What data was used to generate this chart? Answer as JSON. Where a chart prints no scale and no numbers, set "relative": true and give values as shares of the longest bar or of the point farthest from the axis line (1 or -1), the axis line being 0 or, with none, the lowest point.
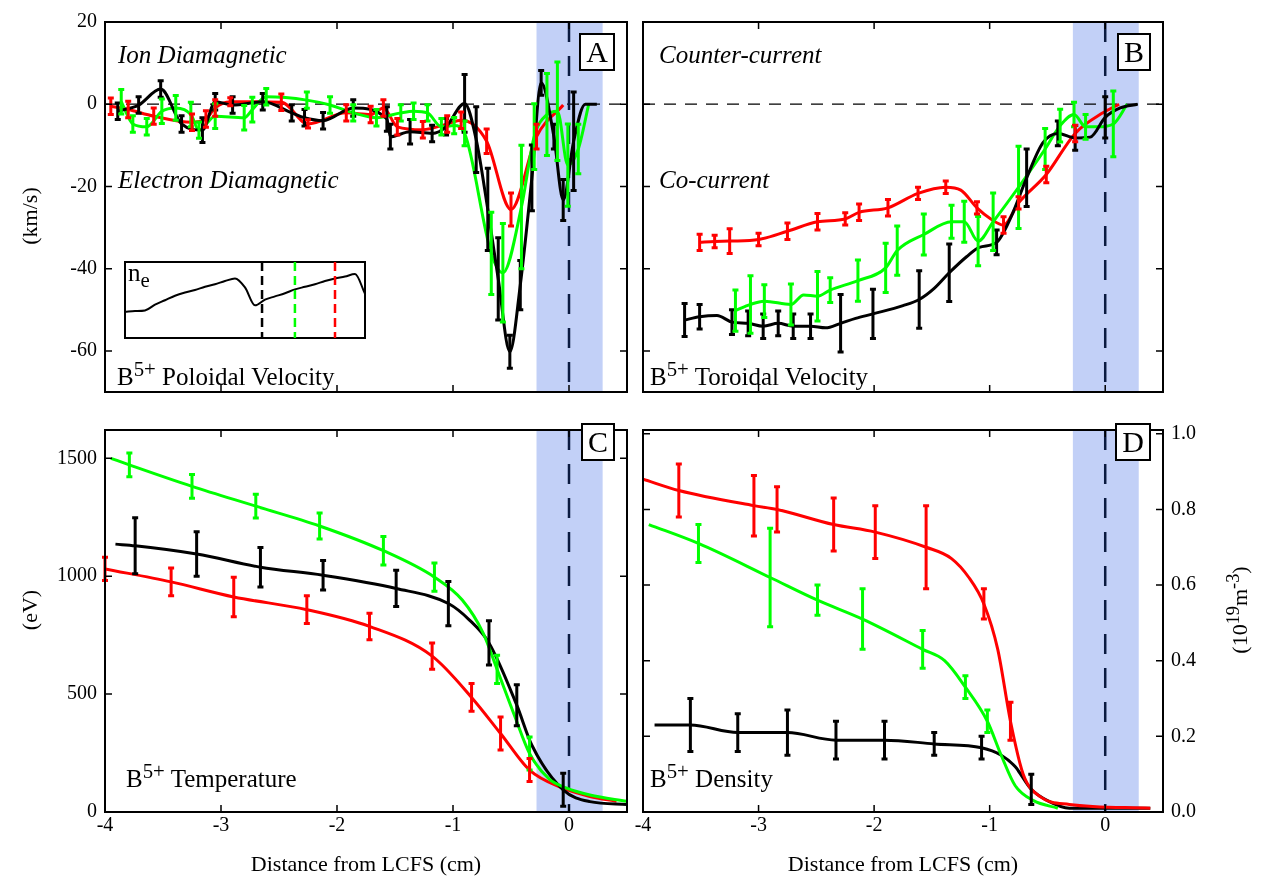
{
  "chart_data": [
    {
      "type": "line",
      "title": "A",
      "ylabel": "(km/s)",
      "annotations": [
        "Ion Diamagnetic",
        "Electron Diamagnetic",
        "B$^{5+}$ Poloidal Velocity"
      ],
      "xlim": [
        -4,
        0.5
      ],
      "xticks": [
        {
          "value": -4,
          "label": null
        },
        {
          "value": -3,
          "label": null
        },
        {
          "value": -2,
          "label": null
        },
        {
          "value": -1,
          "label": null
        },
        {
          "value": 0,
          "label": null
        }
      ],
      "ylim": [
        -70,
        20
      ],
      "yticks": [
        -60,
        -40,
        -20,
        0,
        20
      ],
      "tick_labels": "y",
      "grid": false,
      "legend": false,
      "marker": "none",
      "bands": [
        {
          "axis": "x",
          "from": -0.28,
          "to": 0.29,
          "color": "#c2d0f7"
        }
      ],
      "ref_lines": [
        {
          "axis": "y",
          "value": 0,
          "color": "#000000",
          "line_style": "dashed"
        },
        {
          "axis": "x",
          "value": 0,
          "color": "#0a1a40",
          "line_style": "dashed"
        }
      ],
      "series": [
        {
          "color": "#000000",
          "x": [
            -3.89,
            -3.71,
            -3.52,
            -3.34,
            -3.16,
            -3.05,
            -2.9,
            -2.64,
            -2.39,
            -2.28,
            -2.12,
            -1.86,
            -1.57,
            -1.54,
            -1.37,
            -1.18,
            -1.06,
            -0.9,
            -0.8,
            -0.7,
            -0.61,
            -0.51,
            -0.42,
            -0.32,
            -0.24,
            -0.13,
            -0.05,
            0.04,
            0.14,
            0.24
          ],
          "values": [
            -1.7,
            -0.2,
            3.7,
            -4.8,
            -6.3,
            0.6,
            -0.2,
            0.6,
            -2.1,
            -3.3,
            -4,
            -0.9,
            -3.6,
            -7.9,
            -6.7,
            -7.1,
            -5.5,
            0.2,
            -8.6,
            -25.6,
            -42.5,
            -60.2,
            -44,
            -17.9,
            5.2,
            -7.9,
            -23.3,
            -9,
            0,
            0
          ],
          "errors": [
            2,
            2,
            2,
            2,
            3,
            2,
            2,
            2,
            2,
            2,
            2,
            2,
            3,
            3,
            3,
            2,
            2,
            7,
            8,
            10,
            10,
            4,
            6,
            8,
            3,
            3,
            5,
            12,
            null,
            null
          ]
        },
        {
          "color": "#00ff00",
          "x": [
            -3.86,
            -3.76,
            -3.64,
            -3.51,
            -3.39,
            -3.26,
            -3.19,
            -3.05,
            -2.8,
            -2.73,
            -2.61,
            -2.26,
            -2.06,
            -1.86,
            -1.66,
            -1.45,
            -1.34,
            -1.22,
            -1.1,
            -0.99,
            -0.9,
            -0.67,
            -0.57,
            -0.41,
            -0.3,
            -0.19,
            -0.1,
            -0.01,
            0.08,
            0.17
          ],
          "values": [
            0.6,
            -4.8,
            -5.5,
            -1.7,
            -0.9,
            -2.5,
            -6.3,
            -2.9,
            -3.3,
            -1.3,
            1.8,
            1,
            -0.2,
            -2.1,
            -3.3,
            -2.1,
            -1.7,
            -2.1,
            -5.5,
            -5.2,
            -7.1,
            -36.3,
            -41,
            -25,
            -7.9,
            -2.5,
            -1.7,
            -14.8,
            -10.9,
            0
          ],
          "errors": [
            3,
            2,
            2,
            3,
            3,
            3,
            2,
            3,
            3,
            3,
            2,
            2,
            2,
            2,
            2,
            2,
            2,
            2,
            2,
            2,
            3,
            10,
            12,
            15,
            8,
            10,
            12,
            10,
            6,
            null
          ]
        },
        {
          "color": "#ff0000",
          "x": [
            -3.95,
            -3.8,
            -3.58,
            -3.25,
            -3.13,
            -3.05,
            -2.92,
            -2.48,
            -2.25,
            -1.92,
            -1.71,
            -1.6,
            -1.48,
            -1.26,
            -1.05,
            -0.93,
            -0.71,
            -0.5,
            -0.28,
            -0.05
          ],
          "values": [
            -0.5,
            -1.3,
            -2.9,
            -4.4,
            -3.6,
            -0.9,
            0.6,
            0.5,
            -4.8,
            -2.1,
            -2.5,
            -0.9,
            -5.5,
            -6.2,
            -4.8,
            -3.9,
            -9,
            -25.6,
            -7.9,
            -0.2
          ],
          "errors": [
            2,
            2,
            2,
            2,
            2,
            2,
            1,
            2,
            1,
            2,
            2,
            2,
            2,
            2,
            2,
            2,
            3,
            4,
            3,
            null
          ]
        }
      ]
    },
    {
      "type": "line",
      "relative": true,
      "annotations": [
        "n$_{e}$"
      ],
      "legend": false,
      "grid": false,
      "marker": "none",
      "categories": [
        null,
        null,
        null,
        null,
        null,
        null,
        null,
        null,
        null,
        null,
        null,
        null,
        null,
        null,
        null,
        null,
        null,
        null,
        null,
        null,
        null,
        null,
        null,
        null,
        null
      ],
      "series": [
        {
          "color": "#000000",
          "values": [
            0.41,
            0.42,
            0.43,
            0.52,
            0.59,
            0.66,
            0.71,
            0.75,
            0.8,
            0.84,
            0.89,
            0.93,
            0.79,
            0.51,
            0.6,
            0.65,
            0.7,
            0.76,
            0.8,
            0.84,
            0.89,
            0.93,
            0.96,
            1,
            0.69
          ]
        }
      ]
    },
    {
      "type": "line",
      "title": "B",
      "annotations": [
        "Counter-current",
        "Co-current",
        "B$^{5+}$ Toroidal Velocity"
      ],
      "xlim": [
        -4,
        0.5
      ],
      "xticks": [
        {
          "value": -4,
          "label": null
        },
        {
          "value": -3,
          "label": null
        },
        {
          "value": -2,
          "label": null
        },
        {
          "value": -1,
          "label": null
        },
        {
          "value": 0,
          "label": null
        }
      ],
      "ylim": [
        -70,
        20
      ],
      "yticks": [
        {
          "value": -60,
          "label": null
        },
        {
          "value": -40,
          "label": null
        },
        {
          "value": -20,
          "label": null
        },
        {
          "value": 0,
          "label": null
        },
        {
          "value": 20,
          "label": null
        }
      ],
      "tick_labels": false,
      "grid": false,
      "legend": false,
      "marker": "none",
      "bands": [
        {
          "axis": "x",
          "from": -0.28,
          "to": 0.29,
          "color": "#c2d0f7"
        }
      ],
      "ref_lines": [
        {
          "axis": "y",
          "value": 0,
          "color": "#000000",
          "line_style": "dashed"
        },
        {
          "axis": "x",
          "value": 0,
          "color": "#0a1a40",
          "line_style": "dashed"
        }
      ],
      "series": [
        {
          "color": "#000000",
          "x": [
            -3.64,
            -3.51,
            -3.36,
            -3.23,
            -3.09,
            -2.96,
            -2.83,
            -2.7,
            -2.55,
            -2.42,
            -2.29,
            -2.16,
            -2.01,
            -1.75,
            -1.61,
            -1.48,
            -1.35,
            -1.2,
            -1.09,
            -0.94,
            -0.81,
            -0.68,
            -0.54,
            -0.41,
            -0.26,
            -0.13,
            0,
            0.13,
            0.28
          ],
          "values": [
            -52.5,
            -51.7,
            -51.4,
            -53,
            -53.3,
            -54,
            -53.3,
            -54,
            -54,
            -54.4,
            -53.3,
            -52.1,
            -51,
            -49,
            -47.5,
            -44.8,
            -41,
            -37.1,
            -34.8,
            -33.6,
            -27.1,
            -17.9,
            -9.4,
            -7.1,
            -8.2,
            -8,
            -3.2,
            -0.9,
            0
          ],
          "errors": [
            4,
            3,
            null,
            3,
            3,
            3,
            3,
            3,
            3,
            null,
            7,
            null,
            6,
            null,
            7,
            null,
            7,
            null,
            null,
            3,
            null,
            7,
            null,
            3,
            3,
            null,
            5,
            null,
            null
          ]
        },
        {
          "color": "#00ff00",
          "x": [
            -3.2,
            -3.07,
            -2.95,
            -2.72,
            -2.61,
            -2.49,
            -2.38,
            -2.14,
            -1.9,
            -1.8,
            -1.57,
            -1.33,
            -1.22,
            -1.1,
            -0.97,
            -0.75,
            -0.52,
            -0.39,
            -0.27,
            -0.17,
            -0.06,
            0.07,
            0.19
          ],
          "values": [
            -50.2,
            -48.7,
            -47.9,
            -48.7,
            -46.4,
            -46.7,
            -45.2,
            -42.9,
            -39.8,
            -35.6,
            -31.7,
            -28.6,
            -28.6,
            -33.3,
            -28.6,
            -20.2,
            -10.9,
            -5.2,
            -2.5,
            -5.5,
            -5.5,
            -4.8,
            0
          ],
          "errors": [
            5,
            7,
            4,
            5,
            null,
            6,
            3,
            5,
            6,
            6,
            5,
            4,
            5,
            6,
            7,
            10,
            5,
            4,
            3,
            3,
            null,
            8,
            null
          ]
        },
        {
          "color": "#ff0000",
          "x": [
            -3.51,
            -3.38,
            -3.25,
            -3,
            -2.75,
            -2.49,
            -2.25,
            -2.13,
            -1.88,
            -1.62,
            -1.38,
            -1.25,
            -1.11,
            -0.99,
            -0.88,
            -0.75,
            -0.51,
            -0.26,
            -0.02,
            0.12
          ],
          "values": [
            -33.6,
            -33.4,
            -33.3,
            -32.9,
            -30.9,
            -28.6,
            -27.9,
            -26.3,
            -25.2,
            -21.7,
            -20.2,
            -20.9,
            -25.2,
            -27.9,
            -29.4,
            -24,
            -17.1,
            -7.1,
            -2.1,
            0
          ],
          "errors": [
            2,
            1.5,
            3,
            1.5,
            2,
            2,
            1.5,
            2,
            2,
            1.5,
            1.5,
            null,
            1.5,
            null,
            2,
            1.5,
            2,
            2,
            null,
            null
          ]
        }
      ]
    },
    {
      "type": "line",
      "title": "C",
      "xlabel": "Distance from LCFS (cm)",
      "ylabel": "(eV)",
      "annotations": [
        "B$^{5+}$ Temperature"
      ],
      "xlim": [
        -4,
        0.5
      ],
      "xticks": [
        -4,
        -3,
        -2,
        -1,
        0
      ],
      "ylim": [
        0,
        1620
      ],
      "yticks": [
        0,
        500,
        1000,
        1500
      ],
      "grid": false,
      "legend": false,
      "marker": "none",
      "bands": [
        {
          "axis": "x",
          "from": -0.28,
          "to": 0.29,
          "color": "#c2d0f7"
        }
      ],
      "ref_lines": [
        {
          "axis": "x",
          "value": 0,
          "color": "#0a1a40",
          "line_style": "dashed"
        }
      ],
      "series": [
        {
          "color": "#00ff00",
          "x": [
            -3.95,
            -3.79,
            -3.25,
            -2.7,
            -2.15,
            -1.6,
            -1.16,
            -0.92,
            -0.74,
            -0.62,
            -0.47,
            -0.34,
            -0.17,
            -0.02,
            0.18,
            0.5
          ],
          "values": [
            1500,
            1472,
            1381,
            1297,
            1213,
            1108,
            996,
            899,
            759,
            605,
            409,
            248,
            139,
            101,
            72,
            45
          ],
          "errors": [
            null,
            50,
            50,
            50,
            55,
            60,
            60,
            null,
            null,
            60,
            null,
            70,
            null,
            null,
            null,
            null
          ]
        },
        {
          "color": "#000000",
          "x": [
            -3.91,
            -3.74,
            -3.21,
            -2.66,
            -2.12,
            -1.49,
            -1.04,
            -0.86,
            -0.69,
            -0.45,
            -0.32,
            -0.05,
            0.18,
            0.5
          ],
          "values": [
            1136,
            1129,
            1094,
            1038,
            1004,
            948,
            884,
            815,
            717,
            453,
            283,
            94,
            44,
            32
          ],
          "errors": [
            null,
            119,
            94,
            84,
            63,
            77,
            94,
            null,
            94,
            87,
            null,
            70,
            null,
            null
          ]
        },
        {
          "color": "#ff0000",
          "x": [
            -4,
            -3.43,
            -2.89,
            -2.26,
            -1.72,
            -1.18,
            -0.84,
            -0.59,
            -0.34,
            -0.05,
            0.18,
            0.41
          ],
          "values": [
            1031,
            976,
            912,
            858,
            787,
            661,
            486,
            333,
            178,
            101,
            66,
            45
          ],
          "errors": [
            49,
            59,
            84,
            59,
            56,
            56,
            59,
            70,
            49,
            null,
            null,
            null
          ]
        }
      ]
    },
    {
      "type": "line",
      "title": "D",
      "xlabel": "Distance from LCFS (cm)",
      "y2label": "(10$^{19}$m$^{-3}$)",
      "annotations": [
        "B$^{5+}$ Density"
      ],
      "xlim": [
        -4,
        0.5
      ],
      "xticks": [
        -4,
        -3,
        -2,
        -1,
        0
      ],
      "y2lim": [
        0,
        1.01
      ],
      "y2ticks": [
        {
          "value": 0,
          "label": "0.0"
        },
        {
          "value": 0.2,
          "label": "0.2"
        },
        {
          "value": 0.4,
          "label": "0.4"
        },
        {
          "value": 0.6,
          "label": "0.6"
        },
        {
          "value": 0.8,
          "label": "0.8"
        },
        {
          "value": 1,
          "label": "1.0"
        }
      ],
      "grid": false,
      "legend": false,
      "marker": "none",
      "bands": [
        {
          "axis": "x",
          "from": -0.28,
          "to": 0.29,
          "color": "#c2d0f7"
        }
      ],
      "ref_lines": [
        {
          "axis": "x",
          "value": 0,
          "color": "#0a1a40",
          "line_style": "dashed"
        }
      ],
      "series": [
        {
          "color": "#ff0000",
          "axis": "y2",
          "x": [
            -4,
            -3.69,
            -3.04,
            -2.84,
            -2.35,
            -1.99,
            -1.55,
            -1.33,
            -1.18,
            -1.05,
            -0.93,
            -0.82,
            -0.71,
            -0.56,
            -0.31,
            0.39
          ],
          "values": [
            0.88,
            0.85,
            0.81,
            0.8,
            0.76,
            0.74,
            0.7,
            0.67,
            0.62,
            0.55,
            0.43,
            0.24,
            0.1,
            0.04,
            0.02,
            0.01
          ],
          "errors": [
            null,
            0.07,
            0.08,
            0.06,
            0.07,
            0.07,
            0.11,
            null,
            null,
            0.04,
            null,
            0.05,
            null,
            null,
            null,
            null
          ]
        },
        {
          "color": "#00ff00",
          "axis": "y2",
          "x": [
            -3.95,
            -3.52,
            -2.9,
            -2.49,
            -2.1,
            -1.58,
            -1.39,
            -1.21,
            -1.02,
            -0.9,
            -0.78,
            -0.62,
            -0.41
          ],
          "values": [
            0.76,
            0.71,
            0.62,
            0.56,
            0.51,
            0.43,
            0.4,
            0.33,
            0.24,
            0.15,
            0.07,
            0.03,
            0.01
          ],
          "errors": [
            null,
            0.05,
            0.13,
            0.04,
            0.08,
            0.05,
            null,
            0.03,
            0.03,
            null,
            null,
            null,
            null
          ]
        },
        {
          "color": "#000000",
          "axis": "y2",
          "x": [
            -3.9,
            -3.59,
            -3.18,
            -2.75,
            -2.33,
            -1.91,
            -1.48,
            -1.07,
            -0.9,
            -0.78,
            -0.64,
            -0.5,
            -0.31,
            0.39
          ],
          "values": [
            0.23,
            0.23,
            0.21,
            0.21,
            0.19,
            0.19,
            0.18,
            0.17,
            0.15,
            0.12,
            0.06,
            0.03,
            0.01,
            0.01
          ],
          "errors": [
            null,
            0.07,
            0.05,
            0.06,
            0.05,
            0.05,
            0.03,
            0.03,
            null,
            null,
            0.04,
            null,
            null,
            null
          ]
        }
      ]
    }
  ]
}
